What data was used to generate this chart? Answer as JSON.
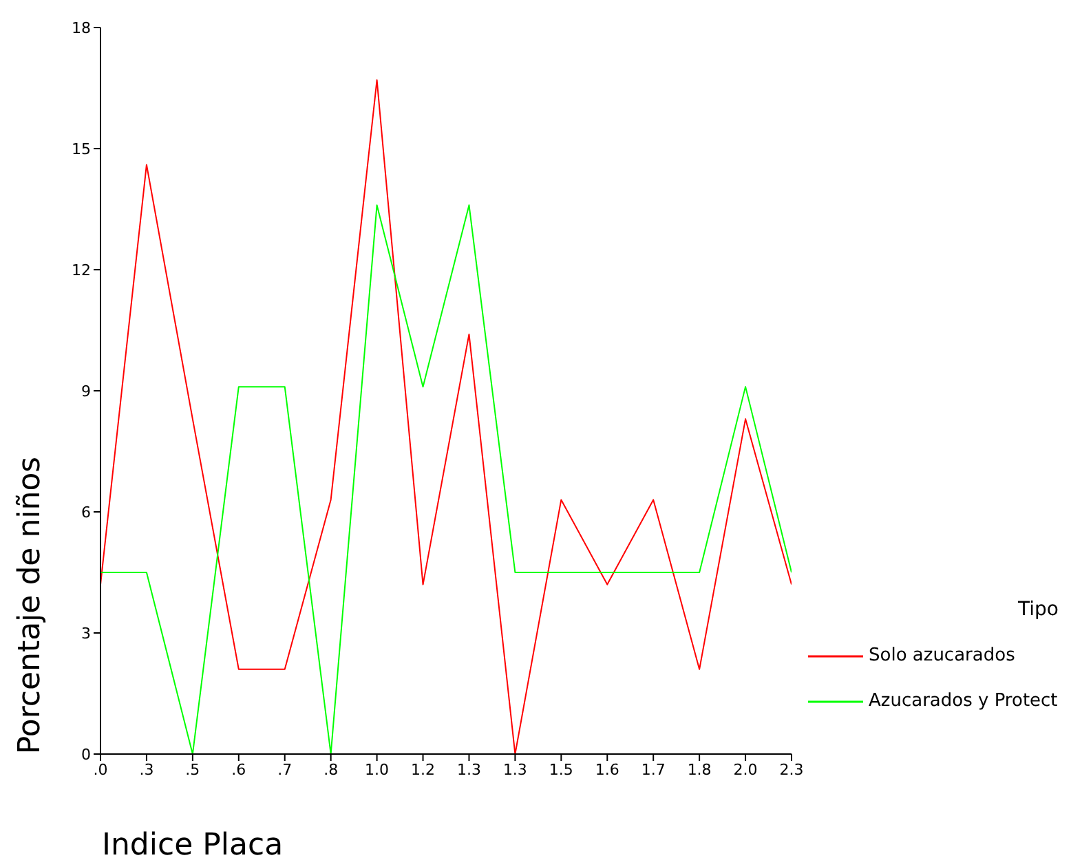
{
  "chart_data": {
    "type": "line",
    "xlabel": "Indice Placa",
    "ylabel": "Porcentaje de niños",
    "legend_title": "Tipo",
    "legend": "right",
    "categories": [
      ".0",
      ".3",
      ".5",
      ".6",
      ".7",
      ".8",
      "1.0",
      "1.2",
      "1.3",
      "1.3",
      "1.5",
      "1.6",
      "1.7",
      "1.8",
      "2.0",
      "2.3"
    ],
    "ylim": [
      0,
      18
    ],
    "yticks": [
      0,
      3,
      6,
      9,
      12,
      15,
      18
    ],
    "grid": false,
    "marker": "none",
    "line_style": "solid",
    "series": [
      {
        "name": "Solo azucarados",
        "color": "#ff0000",
        "values": [
          4.2,
          14.6,
          8.3,
          2.1,
          2.1,
          6.3,
          16.7,
          4.2,
          10.4,
          0,
          6.3,
          4.2,
          6.3,
          2.1,
          8.3,
          4.2
        ]
      },
      {
        "name": "Azucarados y Protect",
        "color": "#00ff00",
        "values": [
          4.5,
          4.5,
          0,
          9.1,
          9.1,
          0,
          13.6,
          9.1,
          13.6,
          4.5,
          4.5,
          4.5,
          4.5,
          4.5,
          9.1,
          4.5
        ]
      }
    ]
  }
}
